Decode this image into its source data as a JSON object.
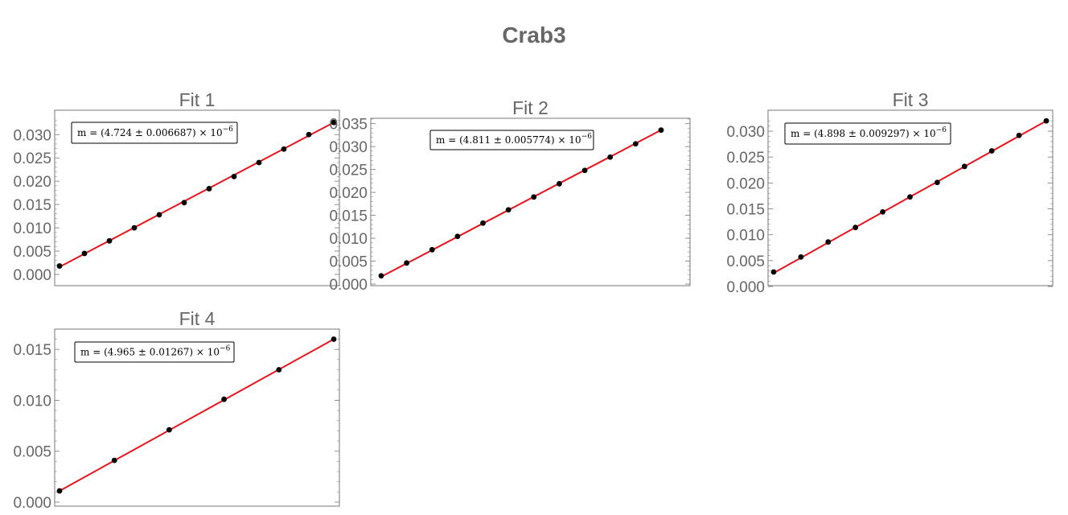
{
  "title": "Crab3",
  "chart_data": [
    {
      "type": "scatter",
      "title": "Fit 1",
      "annotation": {
        "prefix": "m = (4.724 ± 0.006687) × 10",
        "exponent": "−6"
      },
      "y_ticks": [
        "0.000",
        "0.005",
        "0.010",
        "0.015",
        "0.020",
        "0.025",
        "0.030"
      ],
      "ylim": [
        0,
        0.0335
      ],
      "series": [
        {
          "type": "scatter",
          "y": [
            0.0018,
            0.0045,
            0.0072,
            0.01,
            0.0128,
            0.0154,
            0.0184,
            0.021,
            0.024,
            0.0269,
            0.03,
            0.0326
          ]
        },
        {
          "type": "fit_line",
          "y_start": 0.0016,
          "y_end": 0.0326
        }
      ],
      "colors": {
        "points": "#000000",
        "fit": "#e8141b"
      }
    },
    {
      "type": "scatter",
      "title": "Fit 2",
      "annotation": {
        "prefix": "m = (4.811 ± 0.005774) × 10",
        "exponent": "−6"
      },
      "y_ticks": [
        "0.000",
        "0.005",
        "0.010",
        "0.015",
        "0.020",
        "0.025",
        "0.030",
        "0.035"
      ],
      "ylim": [
        0,
        0.036
      ],
      "series": [
        {
          "type": "scatter",
          "y": [
            0.0018,
            0.0046,
            0.0075,
            0.0104,
            0.0133,
            0.0162,
            0.019,
            0.0219,
            0.0248,
            0.0277,
            0.0306,
            0.0336
          ]
        },
        {
          "type": "fit_line",
          "y_start": 0.0016,
          "y_end": 0.0336
        }
      ],
      "colors": {
        "points": "#000000",
        "fit": "#e8141b"
      }
    },
    {
      "type": "scatter",
      "title": "Fit 3",
      "annotation": {
        "prefix": "m = (4.898 ± 0.009297) × 10",
        "exponent": "−6"
      },
      "y_ticks": [
        "0.000",
        "0.005",
        "0.010",
        "0.015",
        "0.020",
        "0.025",
        "0.030"
      ],
      "ylim": [
        0,
        0.0325
      ],
      "series": [
        {
          "type": "scatter",
          "y": [
            0.0028,
            0.0057,
            0.0086,
            0.0114,
            0.0144,
            0.0173,
            0.0201,
            0.0232,
            0.0262,
            0.0292,
            0.032
          ]
        },
        {
          "type": "fit_line",
          "y_start": 0.0026,
          "y_end": 0.032
        }
      ],
      "colors": {
        "points": "#000000",
        "fit": "#e8141b"
      }
    },
    {
      "type": "scatter",
      "title": "Fit 4",
      "annotation": {
        "prefix": "m = (4.965 ± 0.01267) × 10",
        "exponent": "−6"
      },
      "y_ticks": [
        "0.000",
        "0.005",
        "0.010",
        "0.015"
      ],
      "ylim": [
        0,
        0.0162
      ],
      "series": [
        {
          "type": "scatter",
          "y": [
            0.0011,
            0.0041,
            0.0071,
            0.0101,
            0.013,
            0.016
          ]
        },
        {
          "type": "fit_line",
          "y_start": 0.0011,
          "y_end": 0.016
        }
      ],
      "colors": {
        "points": "#000000",
        "fit": "#e8141b"
      }
    }
  ]
}
